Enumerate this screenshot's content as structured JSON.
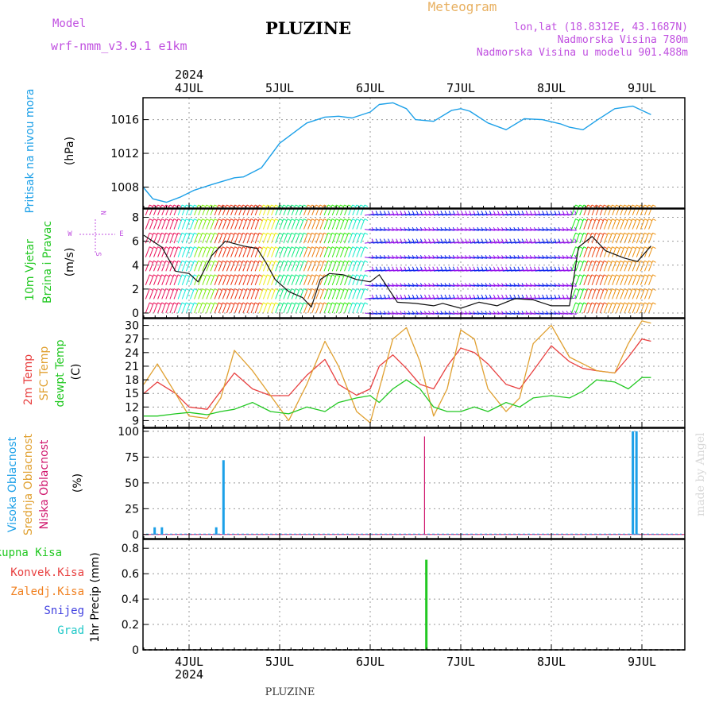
{
  "header": {
    "title": "PLUZINE",
    "product": "Meteogram",
    "model_label": "Model",
    "model_name": "wrf-nmm_v3.9.1  e1km",
    "lonlat": "lon,lat (18.8312E, 43.1687N)",
    "elevation": "Nadmorska Visina 780m",
    "model_elevation": "Nadmorska Visina u modelu 901.488m",
    "year": "2024",
    "footer_title": "PLUZINE",
    "credit": "made by Angel"
  },
  "colors": {
    "pressure": "#1ca0e8",
    "temp2m": "#e84040",
    "sfc": "#e0a030",
    "dewpt": "#22c822",
    "high_cloud": "#1ca0e8",
    "mid_cloud": "#e0a030",
    "low_cloud": "#d0186e",
    "total_precip": "#22c822",
    "conv_precip": "#e84040",
    "frozen_precip": "#f08020",
    "snow": "#4040e0",
    "hail": "#20c8c8",
    "header": "#c050e0",
    "product": "#e8b060",
    "credit": "#d8d8d8"
  },
  "chart_data": [
    {
      "type": "line",
      "panel": "pressure",
      "ylabel_parts": [
        "Pritisak na nivou mora",
        "(hPa)"
      ],
      "xticks": [
        "4JUL",
        "5JUL",
        "6JUL",
        "7JUL",
        "8JUL",
        "9JUL"
      ],
      "yticks": [
        1008,
        1012,
        1016
      ],
      "ylim": [
        1005.5,
        1018.6
      ],
      "x": [
        0,
        0.1,
        0.25,
        0.4,
        0.55,
        0.75,
        1.0,
        1.1,
        1.3,
        1.5,
        1.6,
        1.8,
        2.0,
        2.15,
        2.3,
        2.5,
        2.6,
        2.75,
        2.9,
        3.0,
        3.2,
        3.4,
        3.5,
        3.6,
        3.8,
        4.0,
        4.2,
        4.4,
        4.6,
        4.7,
        4.85,
        5.0,
        5.2,
        5.4,
        5.6
      ],
      "series": [
        {
          "values": [
            1007.9,
            1006.6,
            1006.2,
            1006.8,
            1007.6,
            1008.3,
            1009.1,
            1009.2,
            1010.3,
            1013.2,
            1014.0,
            1015.6,
            1016.3,
            1016.4,
            1016.2,
            1016.9,
            1017.8,
            1018.0,
            1017.3,
            1016.0,
            1015.8,
            1017.1,
            1017.3,
            1017.0,
            1015.6,
            1014.8,
            1016.1,
            1016.0,
            1015.5,
            1015.1,
            1014.8,
            1015.9,
            1017.3,
            1017.6,
            1016.6
          ]
        }
      ]
    },
    {
      "type": "line",
      "panel": "wind",
      "ylabel_parts": [
        "10m Vjetar",
        "Brzina i Pravac",
        "(m/s)"
      ],
      "compass": [
        "N",
        "W",
        "E",
        "S"
      ],
      "yticks": [
        0,
        2,
        4,
        6,
        8
      ],
      "ylim": [
        -0.4,
        8.7
      ],
      "x": [
        0,
        0.2,
        0.35,
        0.5,
        0.6,
        0.75,
        0.9,
        1.1,
        1.25,
        1.35,
        1.45,
        1.6,
        1.75,
        1.85,
        1.95,
        2.05,
        2.2,
        2.35,
        2.5,
        2.6,
        2.8,
        3.0,
        3.2,
        3.3,
        3.5,
        3.7,
        3.9,
        4.1,
        4.3,
        4.5,
        4.7,
        4.8,
        4.95,
        5.1,
        5.3,
        5.45,
        5.6
      ],
      "series": [
        {
          "name": "speed",
          "values": [
            6.5,
            5.5,
            3.5,
            3.3,
            2.6,
            4.8,
            6.0,
            5.6,
            5.4,
            4.2,
            2.8,
            1.8,
            1.3,
            0.5,
            2.8,
            3.3,
            3.2,
            2.8,
            2.6,
            3.2,
            0.9,
            0.8,
            0.6,
            0.8,
            0.4,
            0.9,
            0.6,
            1.2,
            1.1,
            0.6,
            0.6,
            5.5,
            6.4,
            5.2,
            4.6,
            4.3,
            5.6
          ]
        }
      ]
    },
    {
      "type": "line",
      "panel": "temperature",
      "ylabel_parts": [
        "2m Temp",
        "SFC Temp",
        "dewpt Temp",
        "(C)"
      ],
      "yticks": [
        9,
        12,
        15,
        18,
        21,
        24,
        27,
        30
      ],
      "ylim": [
        7.5,
        31.5
      ],
      "x": [
        0,
        0.15,
        0.35,
        0.5,
        0.7,
        0.85,
        1.0,
        1.2,
        1.4,
        1.6,
        1.8,
        2.0,
        2.15,
        2.35,
        2.5,
        2.6,
        2.75,
        2.9,
        3.05,
        3.2,
        3.35,
        3.5,
        3.65,
        3.8,
        4.0,
        4.15,
        4.3,
        4.5,
        4.7,
        4.85,
        5.0,
        5.2,
        5.35,
        5.5,
        5.6
      ],
      "series": [
        {
          "name": "2m Temp",
          "values": [
            15.0,
            17.5,
            15.0,
            12.0,
            11.5,
            15.5,
            19.5,
            16.0,
            14.5,
            14.5,
            19.0,
            22.5,
            17.0,
            14.6,
            16.0,
            21.0,
            23.5,
            20.5,
            17.0,
            16.0,
            21.0,
            25.0,
            24.0,
            21.5,
            17.0,
            16.0,
            20.0,
            25.5,
            22.0,
            20.5,
            20.0,
            19.5,
            23.0,
            27.0,
            26.5
          ]
        },
        {
          "name": "SFC Temp",
          "values": [
            17.0,
            21.5,
            15.0,
            10.0,
            9.5,
            14.0,
            24.5,
            20.0,
            14.5,
            9.0,
            17.0,
            26.5,
            21.0,
            11.0,
            8.5,
            16.0,
            27.0,
            29.5,
            22.0,
            10.0,
            16.0,
            29.0,
            27.0,
            16.0,
            11.0,
            14.0,
            26.0,
            30.0,
            23.0,
            21.5,
            20.0,
            19.5,
            26.0,
            31.0,
            30.5
          ]
        },
        {
          "name": "dewpt Temp",
          "values": [
            10.0,
            10.0,
            10.5,
            10.8,
            10.3,
            11.0,
            11.5,
            13.0,
            11.0,
            10.5,
            12.0,
            11.0,
            13.0,
            14.0,
            14.5,
            13.0,
            16.0,
            18.0,
            16.0,
            12.0,
            11.0,
            11.0,
            12.0,
            11.0,
            13.0,
            12.0,
            14.0,
            14.5,
            14.0,
            15.5,
            18.0,
            17.5,
            16.0,
            18.5,
            18.5
          ]
        }
      ]
    },
    {
      "type": "bar",
      "panel": "clouds",
      "ylabel_parts": [
        "Visoka Oblacnost",
        "Srednja Oblacnost",
        "Niska Oblacnost",
        "(%)"
      ],
      "yticks": [
        0,
        25,
        50,
        75,
        100
      ],
      "ylim": [
        -4,
        103
      ],
      "series": [
        {
          "name": "Visoka Oblacnost",
          "x": [
            0.12,
            0.2,
            0.8,
            0.88,
            5.4,
            5.44
          ],
          "values": [
            7,
            7,
            7,
            72,
            100,
            100
          ]
        },
        {
          "name": "Srednja Oblacnost",
          "x": [],
          "values": []
        },
        {
          "name": "Niska Oblacnost",
          "x": [
            3.1
          ],
          "values": [
            95
          ]
        }
      ]
    },
    {
      "type": "bar",
      "panel": "precip",
      "ylabel_parts": [
        "Ukupna Kisa",
        "Konvek.Kisa",
        "Zaledj.Kisa",
        "Snijeg",
        "Grad",
        "1hr Precip (mm)"
      ],
      "yticks": [
        0,
        0.2,
        0.4,
        0.6,
        0.8
      ],
      "ylim": [
        0,
        0.87
      ],
      "series": [
        {
          "name": "Ukupna Kisa",
          "x": [
            3.12
          ],
          "values": [
            0.71
          ]
        }
      ]
    }
  ]
}
